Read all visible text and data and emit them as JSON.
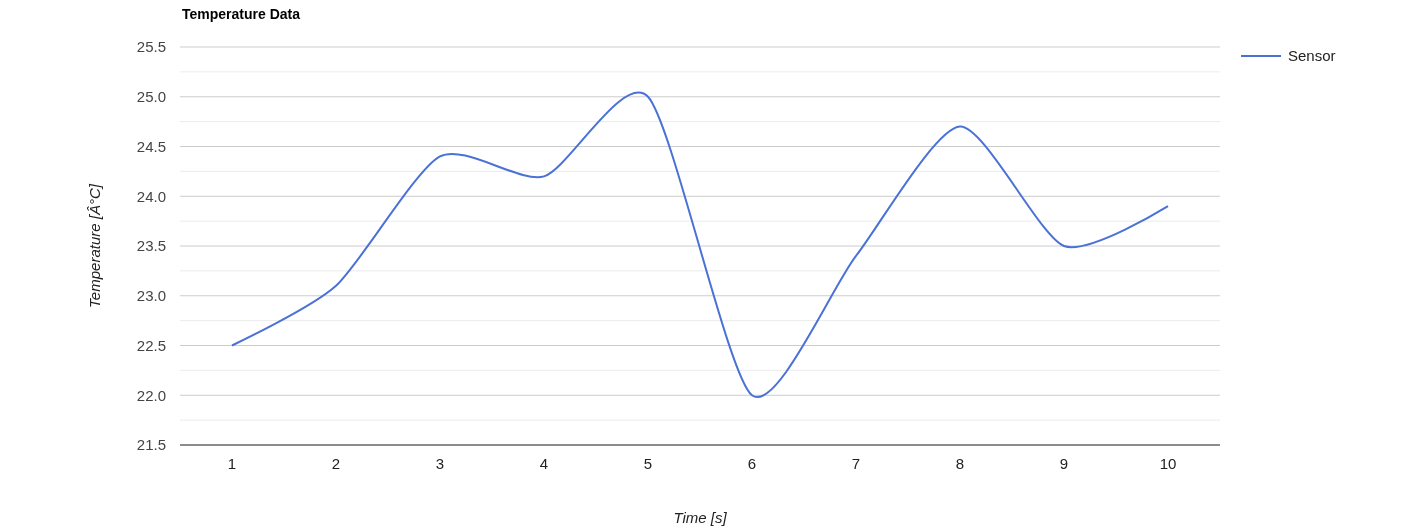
{
  "chart_data": {
    "type": "line",
    "title": "Temperature Data",
    "xlabel": "Time [s]",
    "ylabel": "Temperature [Â°C]",
    "categories": [
      "1",
      "2",
      "3",
      "4",
      "5",
      "6",
      "7",
      "8",
      "9",
      "10"
    ],
    "series": [
      {
        "name": "Sensor",
        "color": "#4a72d6",
        "values": [
          22.5,
          23.1,
          24.4,
          24.2,
          25.0,
          22.0,
          23.4,
          24.7,
          23.5,
          23.9
        ]
      }
    ],
    "ylim": [
      21.5,
      25.5
    ],
    "yticks": [
      21.5,
      {
        "value": 21.75,
        "label": null
      },
      {
        "value": 22,
        "label": "22.0"
      },
      {
        "value": 22.25,
        "label": null
      },
      22.5,
      {
        "value": 22.75,
        "label": null
      },
      {
        "value": 23,
        "label": "23.0"
      },
      {
        "value": 23.25,
        "label": null
      },
      23.5,
      {
        "value": 23.75,
        "label": null
      },
      {
        "value": 24,
        "label": "24.0"
      },
      {
        "value": 24.25,
        "label": null
      },
      24.5,
      {
        "value": 24.75,
        "label": null
      },
      {
        "value": 25,
        "label": "25.0"
      },
      {
        "value": 25.25,
        "label": null
      },
      25.5
    ],
    "grid": "y",
    "legend": "top right",
    "marker": "none",
    "line_style": "solid"
  }
}
